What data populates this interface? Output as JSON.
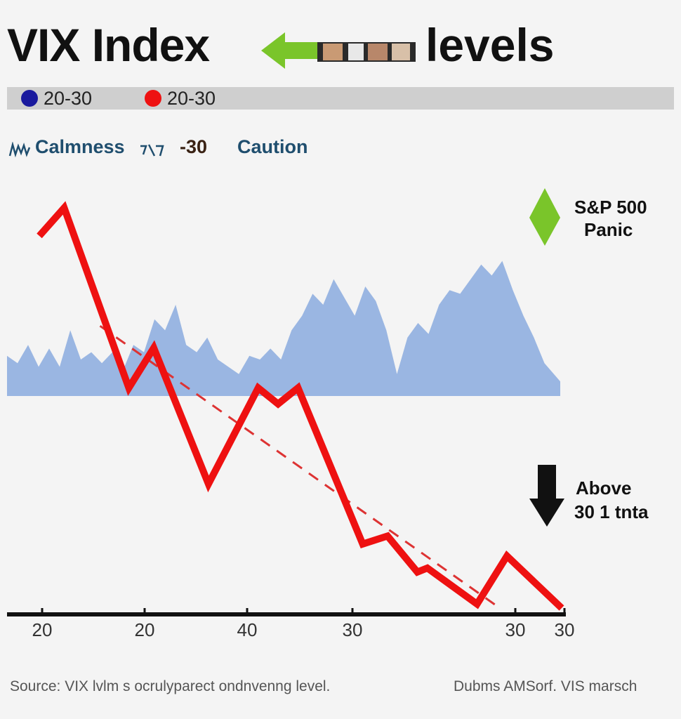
{
  "title": {
    "left": "VIX Index",
    "right": "levels"
  },
  "legend": [
    {
      "label": "20-30",
      "color": "#1a1a9e"
    },
    {
      "label": "20-30",
      "color": "#ee1111"
    }
  ],
  "zones": [
    {
      "label": "Calmness",
      "color": "#1f4e6e"
    },
    {
      "label": "-30",
      "color": "#3a2214"
    },
    {
      "label": "Caution",
      "color": "#1f4e6e"
    }
  ],
  "annotations": {
    "top_line1": "S&P 500",
    "top_line2": "Panic",
    "bottom_line1": "Above",
    "bottom_line2": "30 1 tnta"
  },
  "source_left": "Source: VIX lvlm s ocrulyparect ondnvenng level.",
  "source_right": "Dubms AMSorf. VIS marsch",
  "colors": {
    "area": "#9ab6e2",
    "line": "#ee1111",
    "trend": "#dd3333",
    "arrow_green": "#7ac52a",
    "arrow_black": "#111111"
  },
  "chart_data": {
    "type": "line",
    "x_tick_labels": [
      "20",
      "20",
      "40",
      "30",
      "30",
      "30"
    ],
    "x_tick_positions": [
      0,
      2,
      4,
      6,
      9.6,
      10.5
    ],
    "xlim": [
      0,
      10.5
    ],
    "ylim": [
      0,
      100
    ],
    "grid": false,
    "series": [
      {
        "type": "line",
        "points": [
          [
            0,
            93
          ],
          [
            0.5,
            100
          ],
          [
            1.8,
            55
          ],
          [
            2.3,
            65
          ],
          [
            3.4,
            31
          ],
          [
            4.4,
            55
          ],
          [
            4.8,
            51
          ],
          [
            5.2,
            55
          ],
          [
            6.5,
            16
          ],
          [
            7.0,
            18
          ],
          [
            7.6,
            9
          ],
          [
            7.8,
            10
          ],
          [
            8.8,
            1
          ],
          [
            9.4,
            13
          ],
          [
            10.5,
            0
          ]
        ]
      },
      {
        "type": "line",
        "style": "dashed",
        "points": [
          [
            0.6,
            74
          ],
          [
            9.6,
            0
          ]
        ]
      },
      {
        "type": "area",
        "points": [
          [
            0,
            61
          ],
          [
            0.2,
            59
          ],
          [
            0.4,
            64
          ],
          [
            0.6,
            58
          ],
          [
            0.8,
            63
          ],
          [
            1,
            58
          ],
          [
            1.2,
            68
          ],
          [
            1.4,
            60
          ],
          [
            1.6,
            62
          ],
          [
            1.8,
            59
          ],
          [
            2,
            62
          ],
          [
            2.2,
            57
          ],
          [
            2.4,
            64
          ],
          [
            2.6,
            62
          ],
          [
            2.8,
            71
          ],
          [
            3,
            68
          ],
          [
            3.2,
            75
          ],
          [
            3.4,
            64
          ],
          [
            3.6,
            62
          ],
          [
            3.8,
            66
          ],
          [
            4,
            60
          ],
          [
            4.2,
            58
          ],
          [
            4.4,
            56
          ],
          [
            4.6,
            61
          ],
          [
            4.8,
            60
          ],
          [
            5,
            63
          ],
          [
            5.2,
            60
          ],
          [
            5.4,
            68
          ],
          [
            5.6,
            72
          ],
          [
            5.8,
            78
          ],
          [
            6,
            75
          ],
          [
            6.2,
            82
          ],
          [
            6.4,
            77
          ],
          [
            6.6,
            72
          ],
          [
            6.8,
            80
          ],
          [
            7,
            76
          ],
          [
            7.2,
            68
          ],
          [
            7.4,
            56
          ],
          [
            7.6,
            66
          ],
          [
            7.8,
            70
          ],
          [
            8,
            67
          ],
          [
            8.2,
            75
          ],
          [
            8.4,
            79
          ],
          [
            8.6,
            78
          ],
          [
            8.8,
            82
          ],
          [
            9,
            86
          ],
          [
            9.2,
            83
          ],
          [
            9.4,
            87
          ],
          [
            9.6,
            79
          ],
          [
            9.8,
            72
          ],
          [
            10,
            66
          ],
          [
            10.2,
            59
          ],
          [
            10.5,
            54
          ]
        ]
      }
    ]
  }
}
